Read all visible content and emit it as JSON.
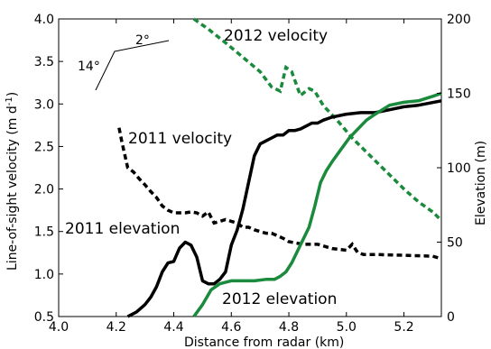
{
  "chart_data": {
    "type": "line",
    "xlabel": "Distance from radar (km)",
    "ylabel_left": "Line-of-sight velocity (m d",
    "ylabel_left_sup": "-1",
    "ylabel_left_end": ")",
    "ylabel_right": "Elevation (m)",
    "xlim": [
      4.0,
      5.33
    ],
    "ylim_left": [
      0.5,
      4.0
    ],
    "ylim_right": [
      0,
      200
    ],
    "x_ticks": [
      "4.0",
      "4.2",
      "4.4",
      "4.6",
      "4.8",
      "5.0",
      "5.2"
    ],
    "y_left_ticks": [
      "0.5",
      "1.0",
      "1.5",
      "2.0",
      "2.5",
      "3.0",
      "3.5",
      "4.0"
    ],
    "y_right_ticks": [
      "0",
      "50",
      "100",
      "150",
      "200"
    ],
    "grid": false,
    "annotations": {
      "v2012": "2012 velocity",
      "v2011": "2011 velocity",
      "e2011": "2011 elevation",
      "e2012": "2012 elevation",
      "angle_small": "2°",
      "angle_large": "14°"
    },
    "series": [
      {
        "name": "2011 velocity",
        "axis": "left",
        "style": "dashed",
        "color": "#000000",
        "x": [
          4.21,
          4.22,
          4.24,
          4.26,
          4.28,
          4.3,
          4.32,
          4.34,
          4.36,
          4.38,
          4.4,
          4.42,
          4.44,
          4.46,
          4.48,
          4.5,
          4.52,
          4.54,
          4.56,
          4.58,
          4.6,
          4.62,
          4.64,
          4.66,
          4.68,
          4.7,
          4.72,
          4.74,
          4.76,
          4.78,
          4.8,
          4.85,
          4.9,
          4.95,
          5.0,
          5.02,
          5.04,
          5.06,
          5.1,
          5.2,
          5.3,
          5.33
        ],
        "y": [
          2.72,
          2.55,
          2.25,
          2.2,
          2.12,
          2.05,
          1.97,
          1.9,
          1.8,
          1.75,
          1.72,
          1.72,
          1.72,
          1.73,
          1.72,
          1.68,
          1.73,
          1.6,
          1.62,
          1.64,
          1.62,
          1.6,
          1.55,
          1.55,
          1.52,
          1.5,
          1.48,
          1.48,
          1.45,
          1.42,
          1.38,
          1.35,
          1.35,
          1.3,
          1.28,
          1.35,
          1.25,
          1.23,
          1.23,
          1.22,
          1.21,
          1.18
        ]
      },
      {
        "name": "2012 velocity",
        "axis": "left",
        "style": "dashed",
        "color": "#1a8a3c",
        "x": [
          4.47,
          4.52,
          4.58,
          4.64,
          4.7,
          4.74,
          4.77,
          4.79,
          4.81,
          4.84,
          4.87,
          4.89,
          4.92,
          4.97,
          5.02,
          5.08,
          5.14,
          5.2,
          5.25,
          5.3,
          5.33
        ],
        "y": [
          4.0,
          3.88,
          3.72,
          3.55,
          3.38,
          3.2,
          3.15,
          3.43,
          3.38,
          3.1,
          3.18,
          3.15,
          2.98,
          2.8,
          2.6,
          2.4,
          2.2,
          2.0,
          1.85,
          1.73,
          1.63
        ]
      },
      {
        "name": "2011 elevation",
        "axis": "right",
        "style": "solid",
        "color": "#000000",
        "x": [
          4.24,
          4.27,
          4.3,
          4.32,
          4.34,
          4.36,
          4.38,
          4.4,
          4.42,
          4.44,
          4.46,
          4.48,
          4.5,
          4.52,
          4.54,
          4.56,
          4.58,
          4.6,
          4.62,
          4.64,
          4.66,
          4.68,
          4.7,
          4.72,
          4.74,
          4.76,
          4.78,
          4.8,
          4.82,
          4.84,
          4.86,
          4.88,
          4.9,
          4.92,
          4.95,
          5.0,
          5.05,
          5.1,
          5.15,
          5.2,
          5.25,
          5.33
        ],
        "y": [
          0,
          3,
          8,
          13,
          20,
          30,
          36,
          37,
          46,
          50,
          48,
          40,
          24,
          22,
          22,
          25,
          30,
          48,
          58,
          72,
          90,
          108,
          116,
          118,
          120,
          122,
          122,
          125,
          125,
          126,
          128,
          130,
          130,
          132,
          134,
          136,
          137,
          137,
          139,
          141,
          142,
          145
        ]
      },
      {
        "name": "2012 elevation",
        "axis": "right",
        "style": "solid",
        "color": "#1a8a3c",
        "x": [
          4.47,
          4.5,
          4.53,
          4.56,
          4.6,
          4.64,
          4.68,
          4.72,
          4.75,
          4.77,
          4.79,
          4.81,
          4.83,
          4.85,
          4.87,
          4.89,
          4.91,
          4.93,
          4.95,
          4.98,
          5.01,
          5.04,
          5.07,
          5.1,
          5.15,
          5.2,
          5.25,
          5.3,
          5.33
        ],
        "y": [
          0,
          8,
          18,
          22,
          24,
          24,
          24,
          25,
          25,
          27,
          30,
          36,
          44,
          52,
          60,
          74,
          90,
          98,
          104,
          112,
          120,
          126,
          132,
          136,
          142,
          144,
          145,
          148,
          150
        ]
      }
    ]
  }
}
